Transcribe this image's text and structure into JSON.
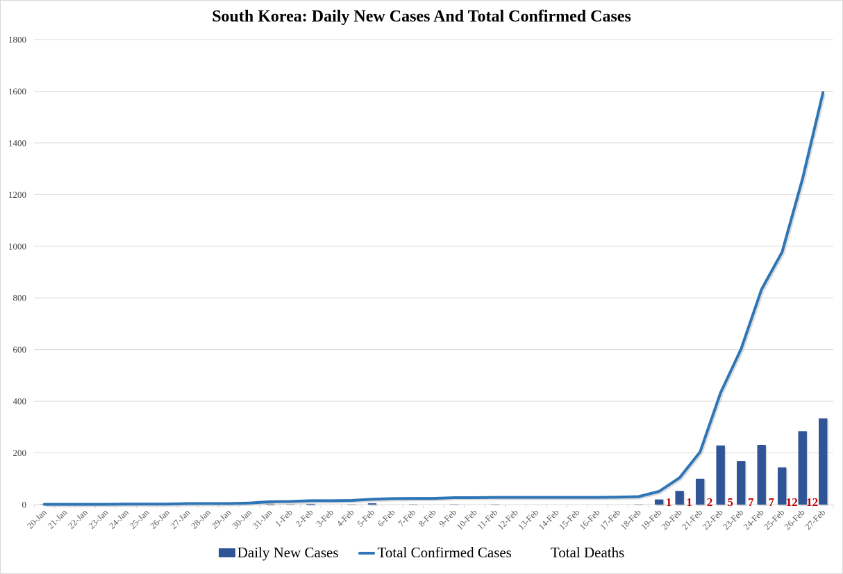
{
  "chart_data": {
    "type": "bar+line",
    "title": "South Korea: Daily New Cases And Total Confirmed Cases",
    "xlabel": "",
    "ylabel": "",
    "ylim": [
      0,
      1800
    ],
    "yticks": [
      0,
      200,
      400,
      600,
      800,
      1000,
      1200,
      1400,
      1600,
      1800
    ],
    "grid": true,
    "legend_position": "bottom",
    "categories": [
      "20-Jan",
      "21-Jan",
      "22-Jan",
      "23-Jan",
      "24-Jan",
      "25-Jan",
      "26-Jan",
      "27-Jan",
      "28-Jan",
      "29-Jan",
      "30-Jan",
      "31-Jan",
      "1-Feb",
      "2-Feb",
      "3-Feb",
      "4-Feb",
      "5-Feb",
      "6-Feb",
      "7-Feb",
      "8-Feb",
      "9-Feb",
      "10-Feb",
      "11-Feb",
      "12-Feb",
      "13-Feb",
      "14-Feb",
      "15-Feb",
      "16-Feb",
      "17-Feb",
      "18-Feb",
      "19-Feb",
      "20-Feb",
      "21-Feb",
      "22-Feb",
      "23-Feb",
      "24-Feb",
      "25-Feb",
      "26-Feb",
      "27-Feb"
    ],
    "series": [
      {
        "name": "Daily New Cases",
        "type": "bar",
        "color": "#2f5597",
        "values": [
          1,
          0,
          0,
          0,
          1,
          0,
          0,
          1,
          0,
          0,
          0,
          4,
          1,
          3,
          0,
          1,
          5,
          0,
          1,
          0,
          1,
          0,
          1,
          0,
          0,
          0,
          0,
          0,
          0,
          1,
          20,
          53,
          100,
          229,
          169,
          231,
          144,
          284,
          334
        ]
      },
      {
        "name": "Total Confirmed Cases",
        "type": "line",
        "color": "#2e75b6",
        "values": [
          1,
          1,
          1,
          1,
          2,
          2,
          2,
          4,
          4,
          4,
          6,
          11,
          12,
          15,
          15,
          16,
          21,
          23,
          24,
          24,
          27,
          27,
          28,
          28,
          28,
          28,
          28,
          28,
          29,
          31,
          51,
          104,
          204,
          433,
          602,
          833,
          977,
          1261,
          1595
        ]
      },
      {
        "name": "Total Deaths",
        "type": "label",
        "color": "#c00000",
        "labels": [
          {
            "category": "19-Feb",
            "value": "1"
          },
          {
            "category": "20-Feb",
            "value": "1"
          },
          {
            "category": "21-Feb",
            "value": "2"
          },
          {
            "category": "22-Feb",
            "value": "5"
          },
          {
            "category": "23-Feb",
            "value": "7"
          },
          {
            "category": "24-Feb",
            "value": "7"
          },
          {
            "category": "25-Feb",
            "value": "12"
          },
          {
            "category": "26-Feb",
            "value": "12"
          }
        ]
      }
    ]
  },
  "legend": {
    "daily": "Daily New Cases",
    "total": "Total Confirmed Cases",
    "deaths": "Total Deaths"
  }
}
